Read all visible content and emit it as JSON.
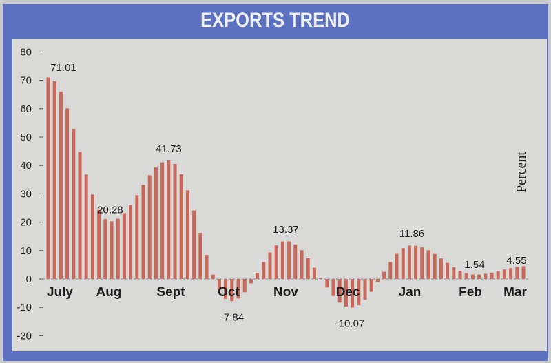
{
  "chart_data": {
    "type": "area",
    "title": "EXPORTS TREND",
    "ylabel": "Percent",
    "xlabel": "",
    "categories": [
      "July",
      "Aug",
      "Sept",
      "Oct",
      "Nov",
      "Dec",
      "Jan",
      "Feb",
      "Mar"
    ],
    "values": [
      71.01,
      20.28,
      41.73,
      -7.84,
      13.37,
      -10.07,
      11.86,
      1.54,
      4.55
    ],
    "data_labels": [
      "71.01",
      "20.28",
      "41.73",
      "-7.84",
      "13.37",
      "-10.07",
      "11.86",
      "1.54",
      "4.55"
    ],
    "yticks": [
      80,
      70,
      60,
      50,
      40,
      30,
      20,
      10,
      0,
      -10,
      -20
    ],
    "ylim": [
      -20,
      80
    ],
    "grid": false,
    "colors": {
      "bars": "#c8685a",
      "frame": "#5c72c0",
      "background": "#d9d9d7"
    }
  }
}
